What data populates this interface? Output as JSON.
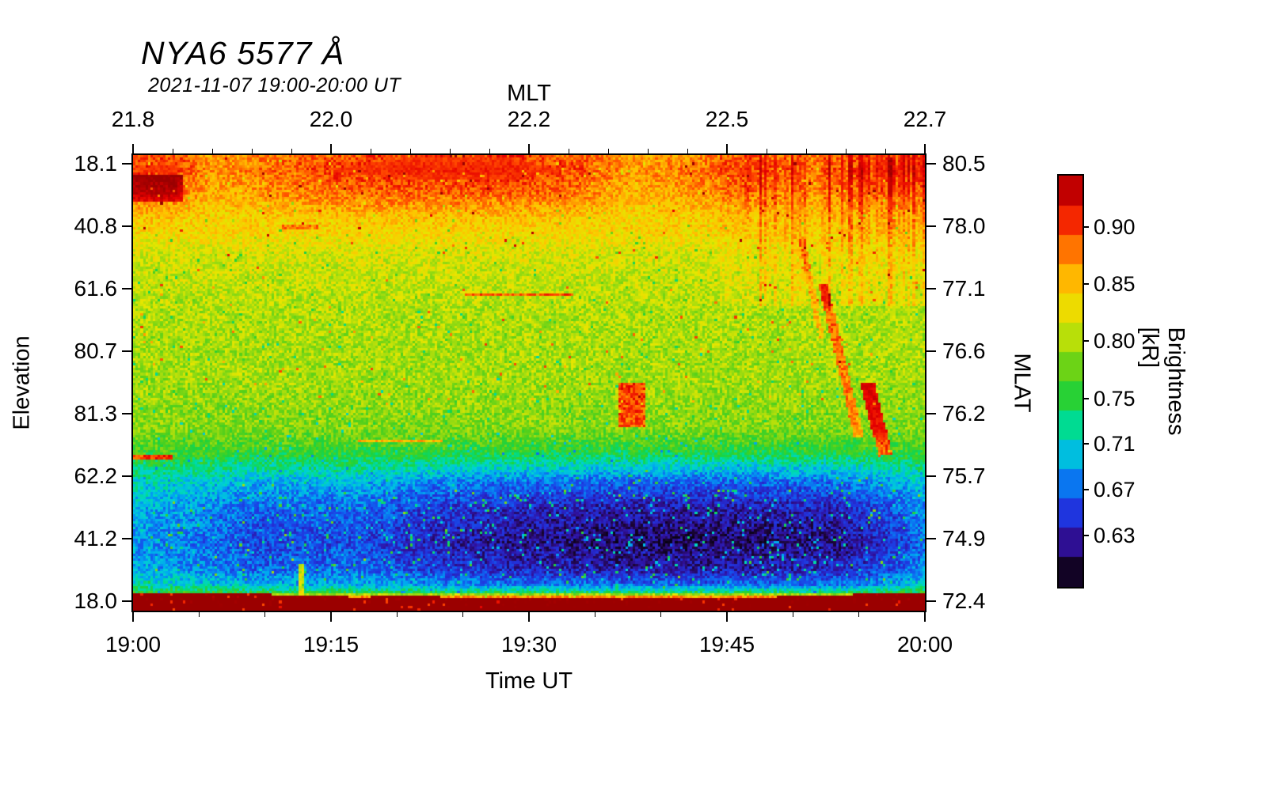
{
  "chart_data": {
    "type": "heatmap",
    "title": "NYA6 5577 Å",
    "subtitle": "2021-11-07 19:00-20:00 UT",
    "axes": {
      "top": {
        "label": "MLT",
        "ticks": [
          "21.8",
          "22.0",
          "22.2",
          "22.5",
          "22.7"
        ]
      },
      "bottom": {
        "label": "Time UT",
        "ticks": [
          "19:00",
          "19:15",
          "19:30",
          "19:45",
          "20:00"
        ]
      },
      "left": {
        "label": "Elevation",
        "ticks": [
          "18.1",
          "40.8",
          "61.6",
          "80.7",
          "81.3",
          "62.2",
          "41.2",
          "18.0"
        ]
      },
      "right": {
        "label": "MLAT",
        "ticks": [
          "80.5",
          "78.0",
          "77.1",
          "76.6",
          "76.2",
          "75.7",
          "74.9",
          "72.4"
        ]
      }
    },
    "colorbar": {
      "label": "Brightness [kR]",
      "tick_values": [
        0.9,
        0.85,
        0.8,
        0.75,
        0.71,
        0.67,
        0.63
      ],
      "tick_labels": [
        "0.90",
        "0.85",
        "0.80",
        "0.75",
        "0.71",
        "0.67",
        "0.63"
      ],
      "vmin": 0.585,
      "vmax": 0.945,
      "levels": 14,
      "stops": [
        [
          0.585,
          "#000005"
        ],
        [
          0.605,
          "#1c0538"
        ],
        [
          0.625,
          "#30109b"
        ],
        [
          0.648,
          "#2133dd"
        ],
        [
          0.668,
          "#1060f0"
        ],
        [
          0.69,
          "#00a8f0"
        ],
        [
          0.71,
          "#00d2d2"
        ],
        [
          0.728,
          "#00dc8c"
        ],
        [
          0.748,
          "#1ed23c"
        ],
        [
          0.77,
          "#55d01a"
        ],
        [
          0.795,
          "#a0dc0f"
        ],
        [
          0.82,
          "#e6e600"
        ],
        [
          0.85,
          "#ffc300"
        ],
        [
          0.873,
          "#ff8c00"
        ],
        [
          0.896,
          "#ff4600"
        ],
        [
          0.92,
          "#e60000"
        ],
        [
          0.945,
          "#9b0000"
        ]
      ]
    },
    "field": {
      "seed": 42,
      "cols": 320,
      "rows": 184,
      "noise": 0.05,
      "profile": [
        [
          0.0,
          0.895
        ],
        [
          0.03,
          0.905
        ],
        [
          0.08,
          0.885
        ],
        [
          0.14,
          0.845
        ],
        [
          0.22,
          0.815
        ],
        [
          0.35,
          0.8
        ],
        [
          0.5,
          0.795
        ],
        [
          0.6,
          0.785
        ],
        [
          0.645,
          0.757
        ],
        [
          0.68,
          0.72
        ],
        [
          0.72,
          0.672
        ],
        [
          0.78,
          0.638
        ],
        [
          0.85,
          0.623
        ],
        [
          0.91,
          0.638
        ],
        [
          0.945,
          0.675
        ],
        [
          0.963,
          0.74
        ],
        [
          0.972,
          0.86
        ],
        [
          0.978,
          0.95
        ],
        [
          1.0,
          0.955
        ]
      ],
      "red_mod": [
        [
          0.0,
          0.95
        ],
        [
          0.05,
          1.0
        ],
        [
          0.1,
          0.55
        ],
        [
          0.17,
          0.75
        ],
        [
          0.25,
          0.95
        ],
        [
          0.35,
          1.05
        ],
        [
          0.48,
          1.05
        ],
        [
          0.56,
          0.9
        ],
        [
          0.63,
          0.55
        ],
        [
          0.7,
          0.7
        ],
        [
          0.78,
          0.85
        ],
        [
          0.85,
          0.65
        ],
        [
          0.92,
          0.85
        ],
        [
          1.0,
          0.9
        ]
      ],
      "dark_mod": [
        [
          0.0,
          0.6
        ],
        [
          0.08,
          0.68
        ],
        [
          0.16,
          0.8
        ],
        [
          0.28,
          0.78
        ],
        [
          0.38,
          0.92
        ],
        [
          0.48,
          1.0
        ],
        [
          0.62,
          1.06
        ],
        [
          0.78,
          1.06
        ],
        [
          0.9,
          1.0
        ],
        [
          0.96,
          0.85
        ],
        [
          1.0,
          0.7
        ]
      ],
      "features": [
        {
          "t": "h",
          "y": 0.155,
          "x0": 0.185,
          "x1": 0.235,
          "v": 0.875,
          "th": 0.007
        },
        {
          "t": "h",
          "y": 0.305,
          "x0": 0.42,
          "x1": 0.555,
          "v": 0.89,
          "th": 0.007
        },
        {
          "t": "h",
          "y": 0.627,
          "x0": 0.285,
          "x1": 0.39,
          "v": 0.855,
          "th": 0.007
        },
        {
          "t": "h",
          "y": 0.663,
          "x0": 0.0,
          "x1": 0.05,
          "v": 0.9,
          "th": 0.009
        },
        {
          "t": "p",
          "x0": 0.612,
          "x1": 0.648,
          "y0": 0.5,
          "y1": 0.6,
          "dv": 0.105
        },
        {
          "t": "p",
          "x0": 0.74,
          "x1": 1.0,
          "y0": 0.0,
          "y1": 0.33,
          "dv": 0.028,
          "streak": true
        },
        {
          "t": "p",
          "x0": 0.0,
          "x1": 0.06,
          "y0": 0.04,
          "y1": 0.1,
          "dv": 0.05
        },
        {
          "t": "d",
          "x0": 0.872,
          "y0": 0.28,
          "x1": 0.918,
          "y1": 0.62,
          "w": 0.006,
          "dv": 0.085
        },
        {
          "t": "d",
          "x0": 0.928,
          "y0": 0.5,
          "x1": 0.952,
          "y1": 0.66,
          "w": 0.009,
          "dv": 0.13
        },
        {
          "t": "d",
          "x0": 0.845,
          "y0": 0.18,
          "x1": 0.87,
          "y1": 0.4,
          "w": 0.004,
          "dv": 0.05
        },
        {
          "t": "v",
          "x": 0.213,
          "y0": 0.9,
          "y1": 0.972,
          "v": 0.82,
          "tw": 0.006
        }
      ]
    }
  }
}
